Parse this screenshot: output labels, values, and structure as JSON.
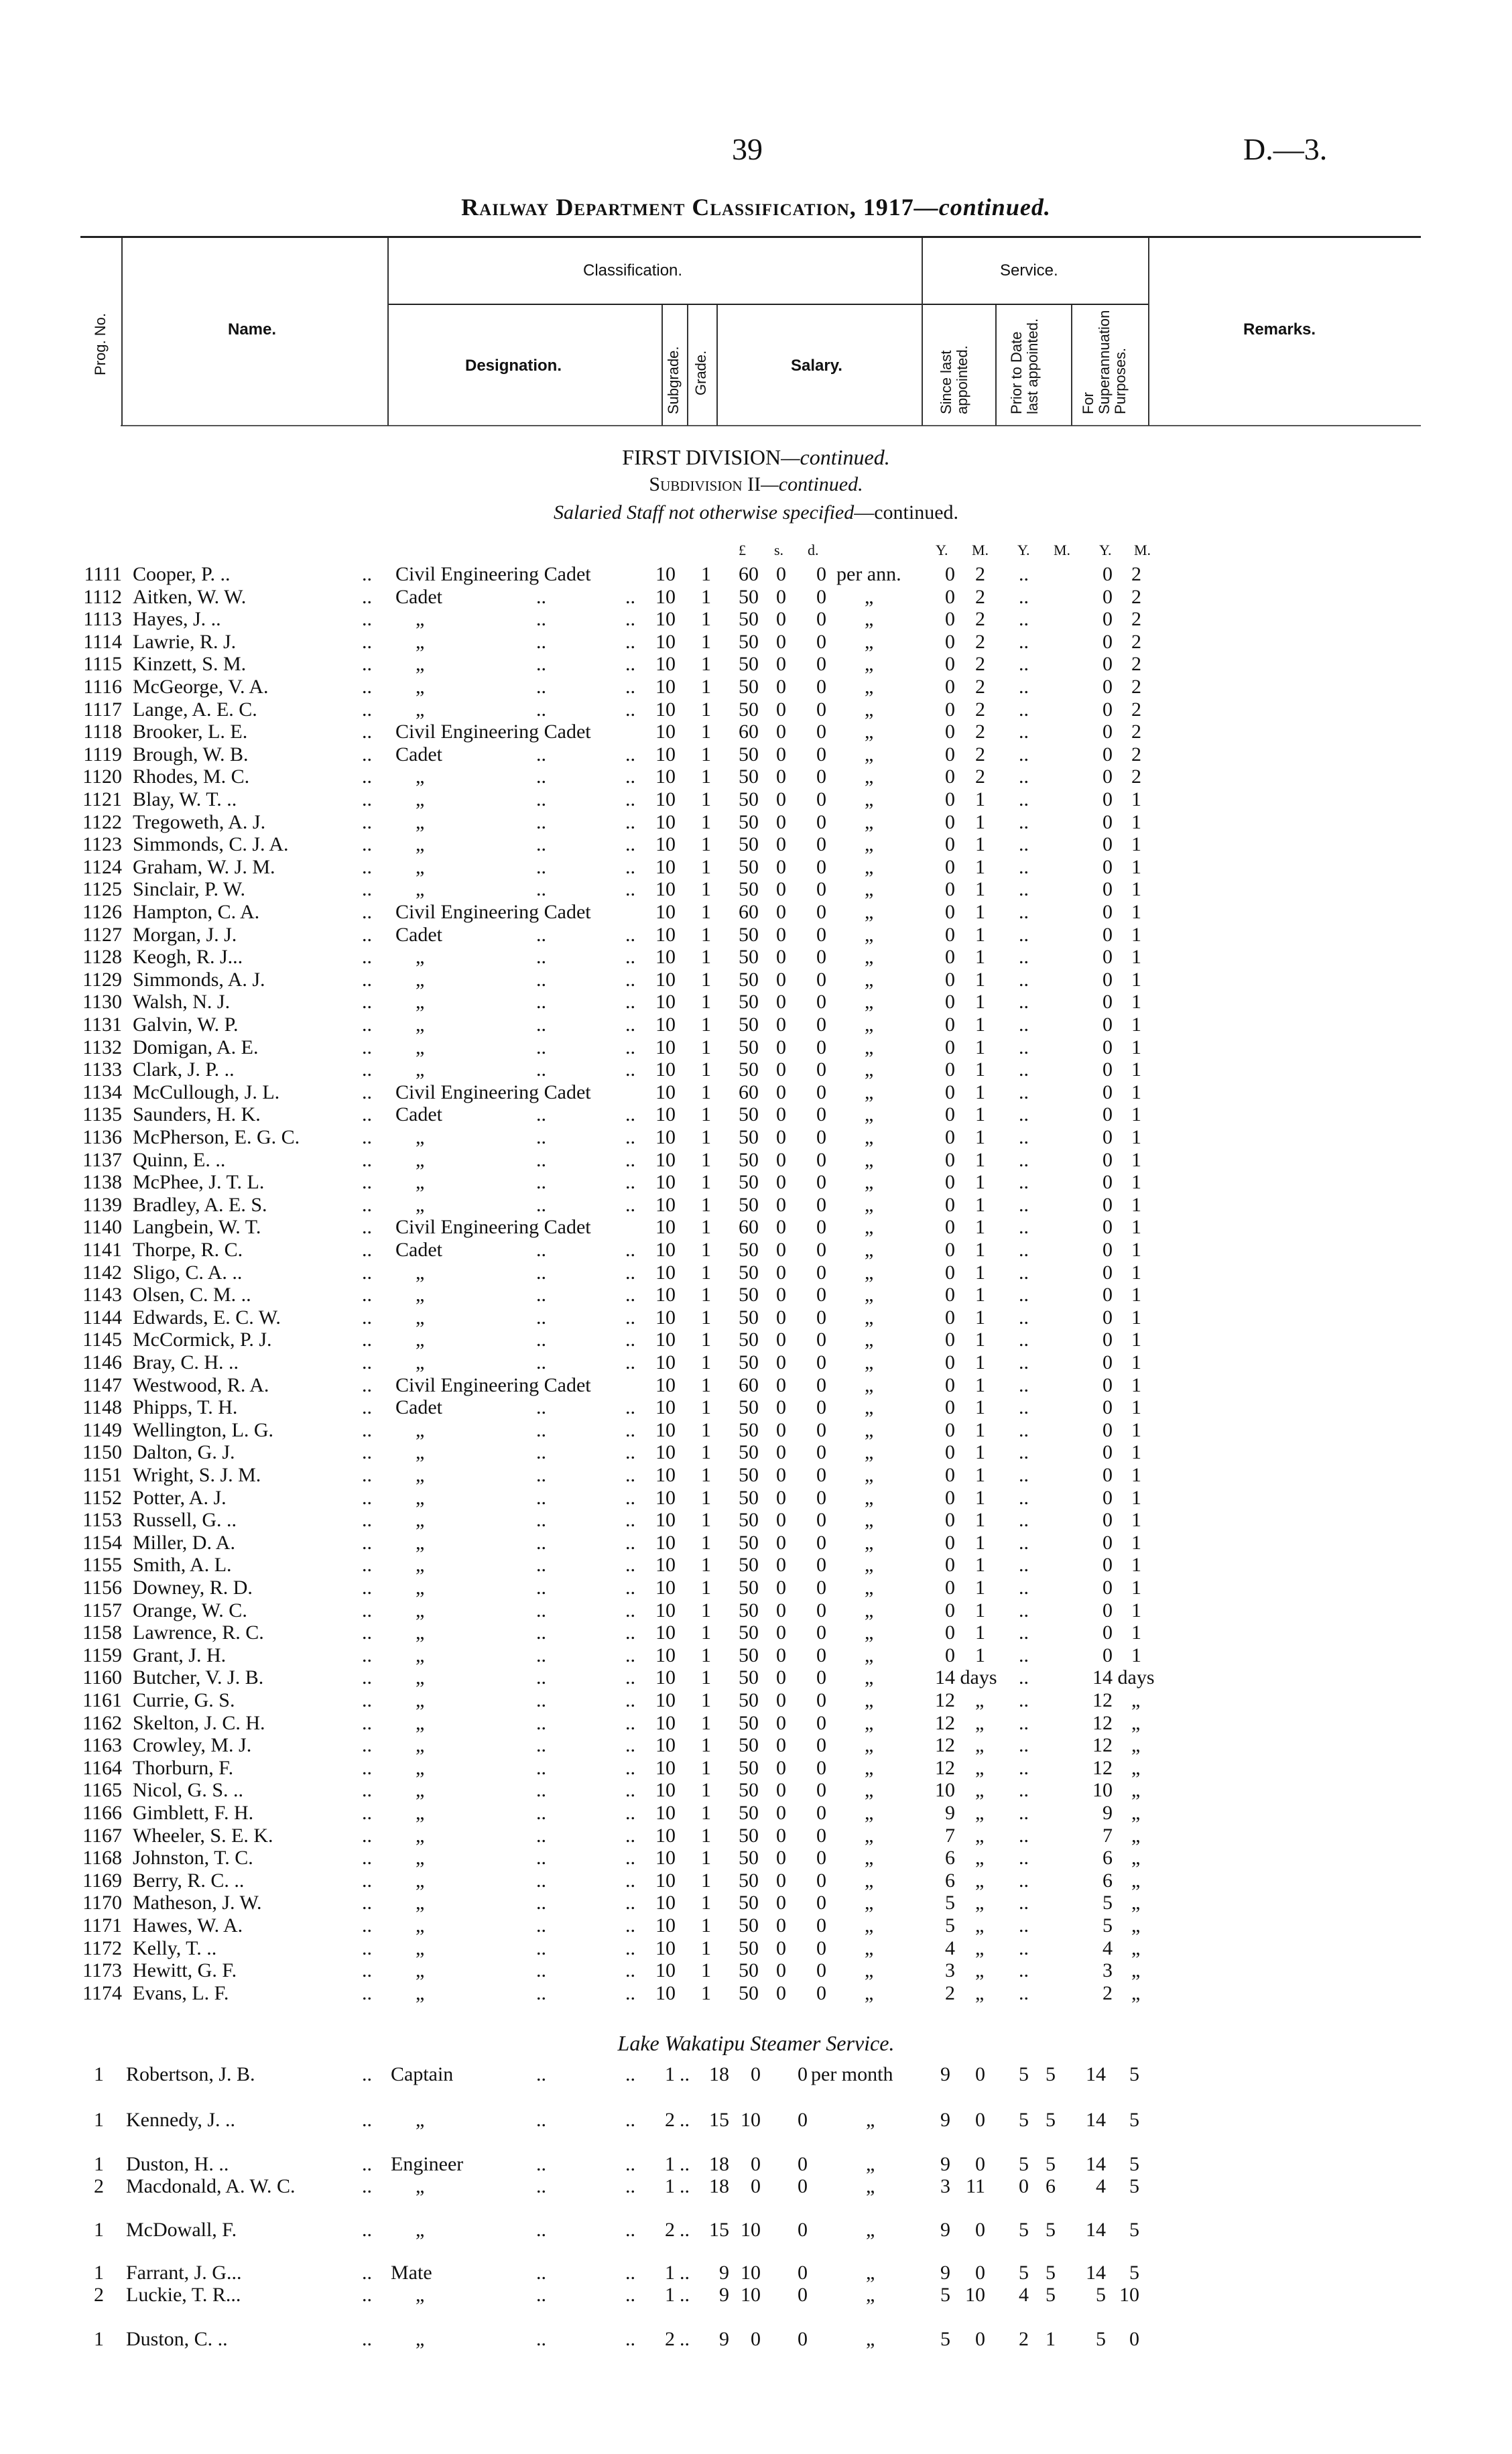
{
  "page_number": "39",
  "doc_ref": "D.—3.",
  "title": "Railway Department Classification, 1917",
  "title_suffix": "—continued.",
  "table_header": {
    "prog_no": "Prog. No.",
    "name": "Name.",
    "classification": "Classification.",
    "designation": "Designation.",
    "subgrade": "Subgrade.",
    "grade": "Grade.",
    "salary": "Salary.",
    "service": "Service.",
    "since_last": "Since last appointed.",
    "prior_to_date": "Prior to Date last appointed.",
    "superannuation": "For Superannuation Purposes.",
    "remarks": "Remarks."
  },
  "section": {
    "division": "FIRST DIVISION",
    "division_suffix": "—continued.",
    "subdivision": "Subdivision II",
    "subdivision_suffix": "—continued.",
    "group": "Salaried Staff not otherwise specified",
    "group_suffix": "—continued."
  },
  "units": {
    "pound": "£",
    "s": "s.",
    "d": "d.",
    "y1": "Y.",
    "m1": "M.",
    "y2": "Y.",
    "m2": "M.",
    "y3": "Y.",
    "m3": "M."
  },
  "rows": [
    [
      "1111",
      "Cooper, P.  ..",
      "Civil Engineering Cadet",
      "10",
      "1",
      "60",
      "0",
      "0",
      "per ann.",
      "0",
      "2",
      "0",
      "2"
    ],
    [
      "1112",
      "Aitken, W. W.",
      "Cadet",
      "10",
      "1",
      "50",
      "0",
      "0",
      "„",
      "0",
      "2",
      "0",
      "2"
    ],
    [
      "1113",
      "Hayes, J.  ..",
      "„",
      "10",
      "1",
      "50",
      "0",
      "0",
      "„",
      "0",
      "2",
      "0",
      "2"
    ],
    [
      "1114",
      "Lawrie, R. J.",
      "„",
      "10",
      "1",
      "50",
      "0",
      "0",
      "„",
      "0",
      "2",
      "0",
      "2"
    ],
    [
      "1115",
      "Kinzett, S. M.",
      "„",
      "10",
      "1",
      "50",
      "0",
      "0",
      "„",
      "0",
      "2",
      "0",
      "2"
    ],
    [
      "1116",
      "McGeorge, V. A.",
      "„",
      "10",
      "1",
      "50",
      "0",
      "0",
      "„",
      "0",
      "2",
      "0",
      "2"
    ],
    [
      "1117",
      "Lange, A. E. C.",
      "„",
      "10",
      "1",
      "50",
      "0",
      "0",
      "„",
      "0",
      "2",
      "0",
      "2"
    ],
    [
      "1118",
      "Brooker, L. E.",
      "Civil Engineering Cadet",
      "10",
      "1",
      "60",
      "0",
      "0",
      "„",
      "0",
      "2",
      "0",
      "2"
    ],
    [
      "1119",
      "Brough, W. B.",
      "Cadet",
      "10",
      "1",
      "50",
      "0",
      "0",
      "„",
      "0",
      "2",
      "0",
      "2"
    ],
    [
      "1120",
      "Rhodes, M. C.",
      "„",
      "10",
      "1",
      "50",
      "0",
      "0",
      "„",
      "0",
      "2",
      "0",
      "2"
    ],
    [
      "1121",
      "Blay, W. T. ..",
      "„",
      "10",
      "1",
      "50",
      "0",
      "0",
      "„",
      "0",
      "1",
      "0",
      "1"
    ],
    [
      "1122",
      "Tregoweth, A. J.",
      "„",
      "10",
      "1",
      "50",
      "0",
      "0",
      "„",
      "0",
      "1",
      "0",
      "1"
    ],
    [
      "1123",
      "Simmonds, C. J. A.",
      "„",
      "10",
      "1",
      "50",
      "0",
      "0",
      "„",
      "0",
      "1",
      "0",
      "1"
    ],
    [
      "1124",
      "Graham, W. J. M.",
      "„",
      "10",
      "1",
      "50",
      "0",
      "0",
      "„",
      "0",
      "1",
      "0",
      "1"
    ],
    [
      "1125",
      "Sinclair, P. W.",
      "„",
      "10",
      "1",
      "50",
      "0",
      "0",
      "„",
      "0",
      "1",
      "0",
      "1"
    ],
    [
      "1126",
      "Hampton, C. A.",
      "Civil Engineering Cadet",
      "10",
      "1",
      "60",
      "0",
      "0",
      "„",
      "0",
      "1",
      "0",
      "1"
    ],
    [
      "1127",
      "Morgan, J. J.",
      "Cadet",
      "10",
      "1",
      "50",
      "0",
      "0",
      "„",
      "0",
      "1",
      "0",
      "1"
    ],
    [
      "1128",
      "Keogh, R. J...",
      "„",
      "10",
      "1",
      "50",
      "0",
      "0",
      "„",
      "0",
      "1",
      "0",
      "1"
    ],
    [
      "1129",
      "Simmonds, A. J.",
      "„",
      "10",
      "1",
      "50",
      "0",
      "0",
      "„",
      "0",
      "1",
      "0",
      "1"
    ],
    [
      "1130",
      "Walsh, N. J.",
      "„",
      "10",
      "1",
      "50",
      "0",
      "0",
      "„",
      "0",
      "1",
      "0",
      "1"
    ],
    [
      "1131",
      "Galvin, W. P.",
      "„",
      "10",
      "1",
      "50",
      "0",
      "0",
      "„",
      "0",
      "1",
      "0",
      "1"
    ],
    [
      "1132",
      "Domigan, A. E.",
      "„",
      "10",
      "1",
      "50",
      "0",
      "0",
      "„",
      "0",
      "1",
      "0",
      "1"
    ],
    [
      "1133",
      "Clark, J. P. ..",
      "„",
      "10",
      "1",
      "50",
      "0",
      "0",
      "„",
      "0",
      "1",
      "0",
      "1"
    ],
    [
      "1134",
      "McCullough, J. L.",
      "Civil Engineering Cadet",
      "10",
      "1",
      "60",
      "0",
      "0",
      "„",
      "0",
      "1",
      "0",
      "1"
    ],
    [
      "1135",
      "Saunders, H. K.",
      "Cadet",
      "10",
      "1",
      "50",
      "0",
      "0",
      "„",
      "0",
      "1",
      "0",
      "1"
    ],
    [
      "1136",
      "McPherson, E. G. C.",
      "„",
      "10",
      "1",
      "50",
      "0",
      "0",
      "„",
      "0",
      "1",
      "0",
      "1"
    ],
    [
      "1137",
      "Quinn, E.  ..",
      "„",
      "10",
      "1",
      "50",
      "0",
      "0",
      "„",
      "0",
      "1",
      "0",
      "1"
    ],
    [
      "1138",
      "McPhee, J. T. L.",
      "„",
      "10",
      "1",
      "50",
      "0",
      "0",
      "„",
      "0",
      "1",
      "0",
      "1"
    ],
    [
      "1139",
      "Bradley, A. E. S.",
      "„",
      "10",
      "1",
      "50",
      "0",
      "0",
      "„",
      "0",
      "1",
      "0",
      "1"
    ],
    [
      "1140",
      "Langbein, W. T.",
      "Civil Engineering Cadet",
      "10",
      "1",
      "60",
      "0",
      "0",
      "„",
      "0",
      "1",
      "0",
      "1"
    ],
    [
      "1141",
      "Thorpe, R. C.",
      "Cadet",
      "10",
      "1",
      "50",
      "0",
      "0",
      "„",
      "0",
      "1",
      "0",
      "1"
    ],
    [
      "1142",
      "Sligo, C. A. ..",
      "„",
      "10",
      "1",
      "50",
      "0",
      "0",
      "„",
      "0",
      "1",
      "0",
      "1"
    ],
    [
      "1143",
      "Olsen, C. M. ..",
      "„",
      "10",
      "1",
      "50",
      "0",
      "0",
      "„",
      "0",
      "1",
      "0",
      "1"
    ],
    [
      "1144",
      "Edwards, E. C. W.",
      "„",
      "10",
      "1",
      "50",
      "0",
      "0",
      "„",
      "0",
      "1",
      "0",
      "1"
    ],
    [
      "1145",
      "McCormick, P. J.",
      "„",
      "10",
      "1",
      "50",
      "0",
      "0",
      "„",
      "0",
      "1",
      "0",
      "1"
    ],
    [
      "1146",
      "Bray, C. H. ..",
      "„",
      "10",
      "1",
      "50",
      "0",
      "0",
      "„",
      "0",
      "1",
      "0",
      "1"
    ],
    [
      "1147",
      "Westwood, R. A.",
      "Civil Engineering Cadet",
      "10",
      "1",
      "60",
      "0",
      "0",
      "„",
      "0",
      "1",
      "0",
      "1"
    ],
    [
      "1148",
      "Phipps, T. H.",
      "Cadet",
      "10",
      "1",
      "50",
      "0",
      "0",
      "„",
      "0",
      "1",
      "0",
      "1"
    ],
    [
      "1149",
      "Wellington, L. G.",
      "„",
      "10",
      "1",
      "50",
      "0",
      "0",
      "„",
      "0",
      "1",
      "0",
      "1"
    ],
    [
      "1150",
      "Dalton, G. J.",
      "„",
      "10",
      "1",
      "50",
      "0",
      "0",
      "„",
      "0",
      "1",
      "0",
      "1"
    ],
    [
      "1151",
      "Wright, S. J. M.",
      "„",
      "10",
      "1",
      "50",
      "0",
      "0",
      "„",
      "0",
      "1",
      "0",
      "1"
    ],
    [
      "1152",
      "Potter, A. J.",
      "„",
      "10",
      "1",
      "50",
      "0",
      "0",
      "„",
      "0",
      "1",
      "0",
      "1"
    ],
    [
      "1153",
      "Russell, G. ..",
      "„",
      "10",
      "1",
      "50",
      "0",
      "0",
      "„",
      "0",
      "1",
      "0",
      "1"
    ],
    [
      "1154",
      "Miller, D. A.",
      "„",
      "10",
      "1",
      "50",
      "0",
      "0",
      "„",
      "0",
      "1",
      "0",
      "1"
    ],
    [
      "1155",
      "Smith, A. L.",
      "„",
      "10",
      "1",
      "50",
      "0",
      "0",
      "„",
      "0",
      "1",
      "0",
      "1"
    ],
    [
      "1156",
      "Downey, R. D.",
      "„",
      "10",
      "1",
      "50",
      "0",
      "0",
      "„",
      "0",
      "1",
      "0",
      "1"
    ],
    [
      "1157",
      "Orange, W. C.",
      "„",
      "10",
      "1",
      "50",
      "0",
      "0",
      "„",
      "0",
      "1",
      "0",
      "1"
    ],
    [
      "1158",
      "Lawrence, R. C.",
      "„",
      "10",
      "1",
      "50",
      "0",
      "0",
      "„",
      "0",
      "1",
      "0",
      "1"
    ],
    [
      "1159",
      "Grant, J. H.",
      "„",
      "10",
      "1",
      "50",
      "0",
      "0",
      "„",
      "0",
      "1",
      "0",
      "1"
    ],
    [
      "1160",
      "Butcher, V. J. B.",
      "„",
      "10",
      "1",
      "50",
      "0",
      "0",
      "„",
      "14 days",
      "",
      "14 days",
      ""
    ],
    [
      "1161",
      "Currie, G. S.",
      "„",
      "10",
      "1",
      "50",
      "0",
      "0",
      "„",
      "12",
      "„",
      "12",
      "„"
    ],
    [
      "1162",
      "Skelton, J. C. H.",
      "„",
      "10",
      "1",
      "50",
      "0",
      "0",
      "„",
      "12",
      "„",
      "12",
      "„"
    ],
    [
      "1163",
      "Crowley, M. J.",
      "„",
      "10",
      "1",
      "50",
      "0",
      "0",
      "„",
      "12",
      "„",
      "12",
      "„"
    ],
    [
      "1164",
      "Thorburn, F.",
      "„",
      "10",
      "1",
      "50",
      "0",
      "0",
      "„",
      "12",
      "„",
      "12",
      "„"
    ],
    [
      "1165",
      "Nicol, G. S. ..",
      "„",
      "10",
      "1",
      "50",
      "0",
      "0",
      "„",
      "10",
      "„",
      "10",
      "„"
    ],
    [
      "1166",
      "Gimblett, F. H.",
      "„",
      "10",
      "1",
      "50",
      "0",
      "0",
      "„",
      "9",
      "„",
      "9",
      "„"
    ],
    [
      "1167",
      "Wheeler, S. E. K.",
      "„",
      "10",
      "1",
      "50",
      "0",
      "0",
      "„",
      "7",
      "„",
      "7",
      "„"
    ],
    [
      "1168",
      "Johnston, T. C.",
      "„",
      "10",
      "1",
      "50",
      "0",
      "0",
      "„",
      "6",
      "„",
      "6",
      "„"
    ],
    [
      "1169",
      "Berry, R. C. ..",
      "„",
      "10",
      "1",
      "50",
      "0",
      "0",
      "„",
      "6",
      "„",
      "6",
      "„"
    ],
    [
      "1170",
      "Matheson, J. W.",
      "„",
      "10",
      "1",
      "50",
      "0",
      "0",
      "„",
      "5",
      "„",
      "5",
      "„"
    ],
    [
      "1171",
      "Hawes, W. A.",
      "„",
      "10",
      "1",
      "50",
      "0",
      "0",
      "„",
      "5",
      "„",
      "5",
      "„"
    ],
    [
      "1172",
      "Kelly, T.  ..",
      "„",
      "10",
      "1",
      "50",
      "0",
      "0",
      "„",
      "4",
      "„",
      "4",
      "„"
    ],
    [
      "1173",
      "Hewitt, G. F.",
      "„",
      "10",
      "1",
      "50",
      "0",
      "0",
      "„",
      "3",
      "„",
      "3",
      "„"
    ],
    [
      "1174",
      "Evans, L. F.",
      "„",
      "10",
      "1",
      "50",
      "0",
      "0",
      "„",
      "2",
      "„",
      "2",
      "„"
    ]
  ],
  "steamer": {
    "heading": "Lake Wakatipu Steamer Service.",
    "rows": [
      [
        "1",
        "Robertson, J. B.",
        "Captain",
        "1",
        "18",
        "0",
        "0",
        "per month",
        "9",
        "0",
        "5",
        "5",
        "14",
        "5"
      ],
      [
        "1",
        "Kennedy, J.  ..",
        "„",
        "2",
        "15",
        "10",
        "0",
        "„",
        "9",
        "0",
        "5",
        "5",
        "14",
        "5"
      ],
      [
        "1",
        "Duston, H.  ..",
        "Engineer",
        "1",
        "18",
        "0",
        "0",
        "„",
        "9",
        "0",
        "5",
        "5",
        "14",
        "5"
      ],
      [
        "2",
        "Macdonald, A. W. C.",
        "„",
        "1",
        "18",
        "0",
        "0",
        "„",
        "3",
        "11",
        "0",
        "6",
        "4",
        "5"
      ],
      [
        "1",
        "McDowall, F.",
        "„",
        "2",
        "15",
        "10",
        "0",
        "„",
        "9",
        "0",
        "5",
        "5",
        "14",
        "5"
      ],
      [
        "1",
        "Farrant, J. G...",
        "Mate",
        "1",
        "9",
        "10",
        "0",
        "„",
        "9",
        "0",
        "5",
        "5",
        "14",
        "5"
      ],
      [
        "2",
        "Luckie, T. R...",
        "„",
        "1",
        "9",
        "10",
        "0",
        "„",
        "5",
        "10",
        "4",
        "5",
        "5",
        "10"
      ],
      [
        "1",
        "Duston, C.  ..",
        "„",
        "2",
        "9",
        "0",
        "0",
        "„",
        "5",
        "0",
        "2",
        "1",
        "5",
        "0"
      ]
    ]
  }
}
